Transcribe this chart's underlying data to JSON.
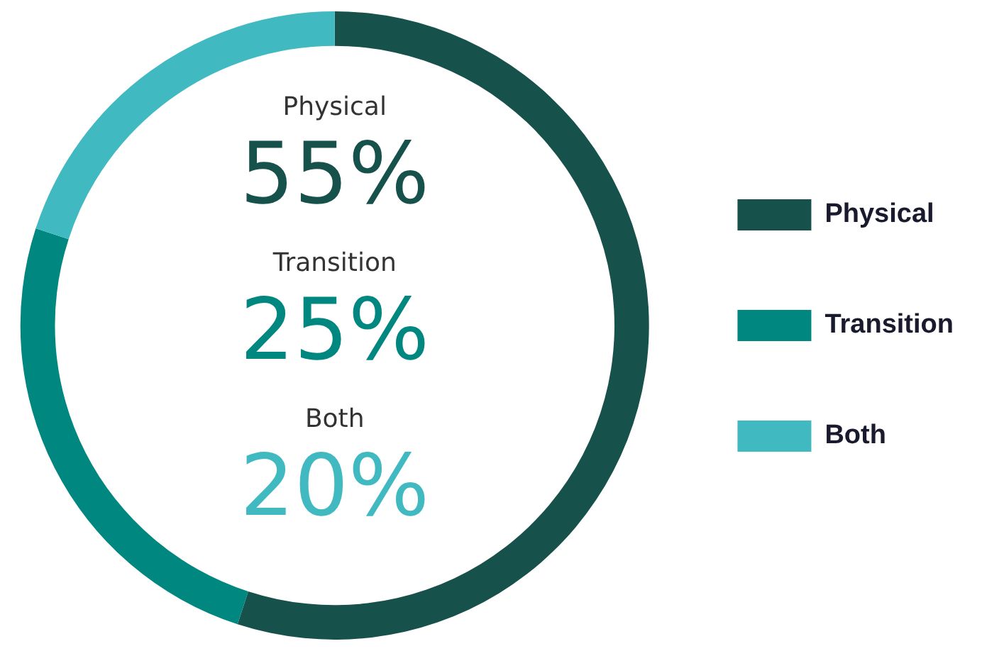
{
  "chart_data": {
    "type": "donut",
    "categories": [
      "Physical",
      "Transition",
      "Both"
    ],
    "values": [
      55,
      25,
      20
    ],
    "colors": [
      "#16524b",
      "#00877f",
      "#41b9c1"
    ],
    "value_labels": [
      "55%",
      "25%",
      "20%"
    ],
    "legend": "right"
  }
}
